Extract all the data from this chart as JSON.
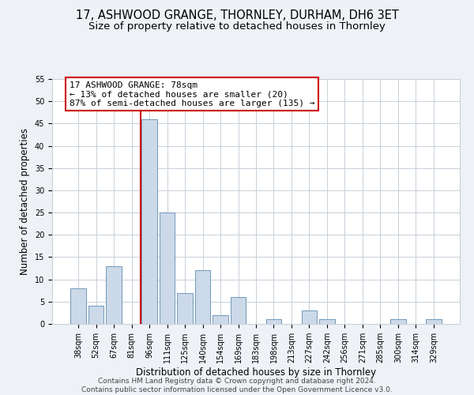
{
  "title": "17, ASHWOOD GRANGE, THORNLEY, DURHAM, DH6 3ET",
  "subtitle": "Size of property relative to detached houses in Thornley",
  "xlabel": "Distribution of detached houses by size in Thornley",
  "ylabel": "Number of detached properties",
  "categories": [
    "38sqm",
    "52sqm",
    "67sqm",
    "81sqm",
    "96sqm",
    "111sqm",
    "125sqm",
    "140sqm",
    "154sqm",
    "169sqm",
    "183sqm",
    "198sqm",
    "213sqm",
    "227sqm",
    "242sqm",
    "256sqm",
    "271sqm",
    "285sqm",
    "300sqm",
    "314sqm",
    "329sqm"
  ],
  "values": [
    8,
    4,
    13,
    0,
    46,
    25,
    7,
    12,
    2,
    6,
    0,
    1,
    0,
    3,
    1,
    0,
    0,
    0,
    1,
    0,
    1
  ],
  "bar_color": "#ccd9e8",
  "bar_edge_color": "#7099bb",
  "vline_x_index": 3.5,
  "vline_color": "#cc0000",
  "ylim": [
    0,
    55
  ],
  "yticks": [
    0,
    5,
    10,
    15,
    20,
    25,
    30,
    35,
    40,
    45,
    50,
    55
  ],
  "annotation_line1": "17 ASHWOOD GRANGE: 78sqm",
  "annotation_line2": "← 13% of detached houses are smaller (20)",
  "annotation_line3": "87% of semi-detached houses are larger (135) →",
  "footnote": "Contains HM Land Registry data © Crown copyright and database right 2024.\nContains public sector information licensed under the Open Government Licence v3.0.",
  "background_color": "#eef2f7",
  "plot_background_color": "#ffffff",
  "grid_color": "#c8d0da",
  "title_fontsize": 10.5,
  "subtitle_fontsize": 9.5,
  "xlabel_fontsize": 8.5,
  "ylabel_fontsize": 8.5,
  "tick_fontsize": 7,
  "annotation_fontsize": 8,
  "footnote_fontsize": 6.5
}
